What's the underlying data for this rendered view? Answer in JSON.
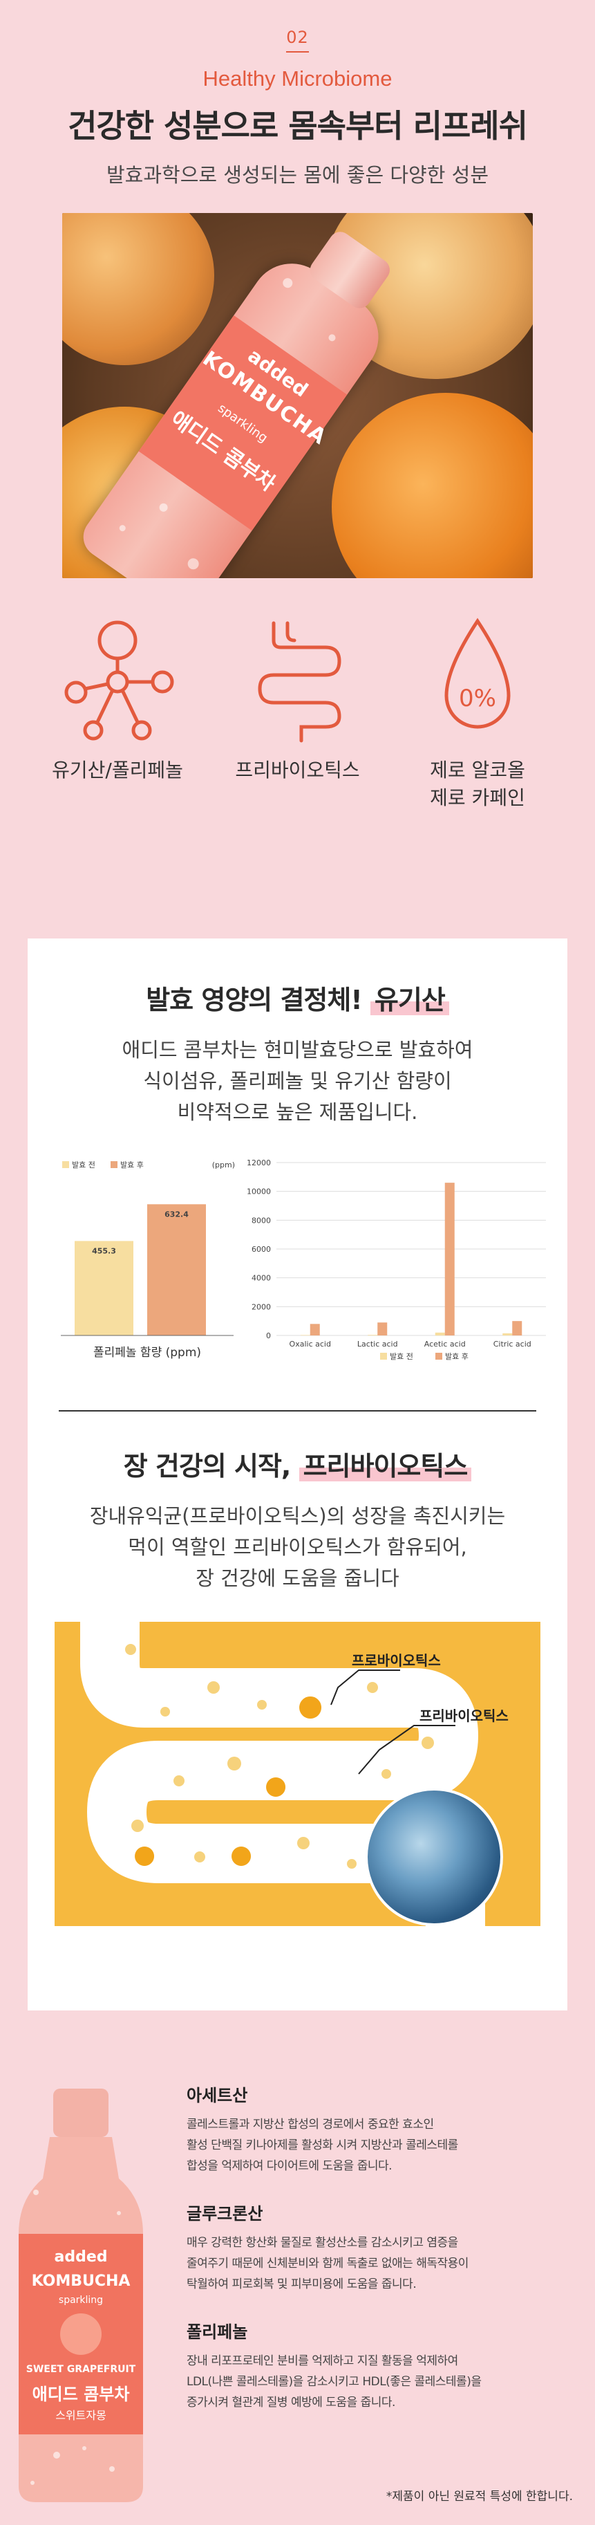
{
  "hero": {
    "section_number": "02",
    "eng_title": "Healthy Microbiome",
    "main_title": "건강한 성분으로 몸속부터 리프레쉬",
    "sub_title": "발효과학으로 생성되는 몸에 좋은 다양한 성분",
    "bottle": {
      "brand": "added",
      "name": "KOMBUCHA",
      "sparkling": "sparkling",
      "flavor_en": "SWEET GRAPEFRUIT",
      "name_kr": "애디드 콤부차",
      "flavor_kr": "스위트자몽"
    }
  },
  "features": [
    {
      "icon": "molecule-icon",
      "label": "유기산/폴리페놀"
    },
    {
      "icon": "intestine-icon",
      "label": "프리바이오틱스"
    },
    {
      "icon": "zero-percent-drop-icon",
      "label": "제로 알코올",
      "label2": "제로 카페인",
      "drop_text": "0%"
    }
  ],
  "organic_acid": {
    "title_prefix": "발효 영양의 결정체! ",
    "title_highlight": "유기산",
    "desc": [
      "애디드 콤부차는 현미발효당으로 발효하여",
      "식이섬유, 폴리페놀 및 유기산 함량이",
      "비약적으로 높은 제품입니다."
    ]
  },
  "chart_data": [
    {
      "type": "bar",
      "title": "",
      "xlabel": "폴리페놀 함량 (ppm)",
      "unit_label": "(ppm)",
      "series": [
        {
          "name": "발효 전",
          "values": [
            455.3
          ],
          "color": "#f7dea0"
        },
        {
          "name": "발효 후",
          "values": [
            632.4
          ],
          "color": "#eca77c"
        }
      ],
      "categories": [
        "폴리페놀"
      ]
    },
    {
      "type": "bar",
      "title": "",
      "categories": [
        "Oxalic acid",
        "Lactic acid",
        "Acetic acid",
        "Citric acid"
      ],
      "series": [
        {
          "name": "발효 전",
          "values": [
            30,
            40,
            200,
            150
          ],
          "color": "#f7dea0"
        },
        {
          "name": "발효 후",
          "values": [
            800,
            900,
            10600,
            1000
          ],
          "color": "#eca77c"
        }
      ],
      "ylim": [
        0,
        12000
      ],
      "yticks": [
        "0",
        "2000",
        "4000",
        "6000",
        "8000",
        "10000",
        "12000"
      ],
      "grid": true
    }
  ],
  "prebiotics": {
    "title_prefix": "장 건강의 시작, ",
    "title_highlight": "프리바이오틱스",
    "desc": [
      "장내유익균(프로바이오틱스)의 성장을 촉진시키는",
      "먹이 역할인 프리바이오틱스가 함유되어,",
      "장 건강에 도움을 줍니다"
    ],
    "tag_probiotics": "프로바이오틱스",
    "tag_prebiotics": "프리바이오틱스"
  },
  "ingredients": [
    {
      "title": "아세트산",
      "text": [
        "콜레스트롤과 지방산 합성의 경로에서 중요한 효소인",
        "활성 단백질 키나아제를 활성화 시켜 지방산과 콜레스테롤",
        "합성을 억제하여 다이어트에 도움을 줍니다."
      ]
    },
    {
      "title": "글루크론산",
      "text": [
        "매우 강력한 항산화 물질로 활성산소를 감소시키고 염증을",
        "줄여주기 때문에 신체분비와 함께 독출로 없애는 해독작용이",
        "탁월하여 피로회복 및 피부미용에 도움을 줍니다."
      ]
    },
    {
      "title": "폴리페놀",
      "text": [
        "장내 리포프로테인 분비를 억제하고 지질 활동을 억제하여",
        "LDL(나쁜 콜레스테롤)을 감소시키고 HDL(좋은 콜레스테롤)을",
        "증가시켜 혈관계 질병 예방에 도움을 줍니다."
      ]
    }
  ],
  "footnote": "*제품이 아닌 원료적 특성에 한합니다.",
  "colors": {
    "accent": "#e35a3e",
    "background": "#f9d8dc",
    "card": "#ffffff",
    "gut_bg": "#f6b93f",
    "highlight": "#f9c6cf"
  }
}
